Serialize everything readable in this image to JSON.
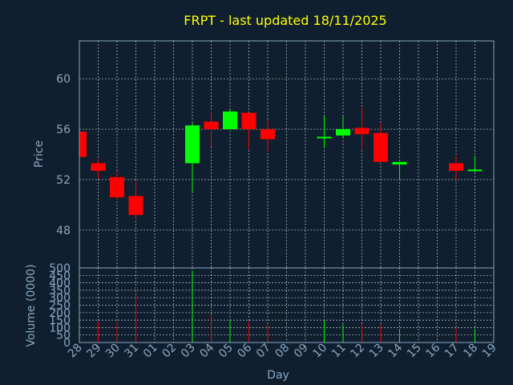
{
  "chart_data": {
    "type": "candlestick",
    "title": "FRPT - last updated 18/11/2025",
    "ylabel": "Price",
    "volume_label": "Volume (0000)",
    "xlabel": "Day",
    "ylim": [
      45,
      63
    ],
    "yticks": [
      48,
      52,
      56,
      60
    ],
    "volume_ylim": [
      0,
      500
    ],
    "volume_yticks": [
      0,
      50,
      100,
      150,
      200,
      250,
      300,
      350,
      400,
      450,
      500
    ],
    "grid": true,
    "colors": {
      "up": "#00ff00",
      "down": "#ff0000",
      "title": "#ffff00",
      "axis": "#8aa6c1",
      "background": "#0f1f2f"
    },
    "x_tick_labels": [
      "28",
      "29",
      "30",
      "31",
      "01",
      "02",
      "03",
      "04",
      "05",
      "06",
      "07",
      "08",
      "09",
      "10",
      "11",
      "12",
      "13",
      "14",
      "15",
      "16",
      "17",
      "18",
      "19"
    ],
    "candles": [
      {
        "day": "28",
        "open": 55.8,
        "high": 55.8,
        "low": 53.7,
        "close": 53.8,
        "volume": 0
      },
      {
        "day": "29",
        "open": 53.3,
        "high": 53.6,
        "low": 52.1,
        "close": 52.7,
        "volume": 140
      },
      {
        "day": "30",
        "open": 52.2,
        "high": 52.7,
        "low": 50.4,
        "close": 50.6,
        "volume": 140
      },
      {
        "day": "31",
        "open": 50.7,
        "high": 51.9,
        "low": 48.9,
        "close": 49.2,
        "volume": 320
      },
      {
        "day": "03",
        "open": 53.3,
        "high": 56.5,
        "low": 51.0,
        "close": 56.3,
        "volume": 480
      },
      {
        "day": "04",
        "open": 56.6,
        "high": 57.4,
        "low": 54.6,
        "close": 56.0,
        "volume": 190
      },
      {
        "day": "05",
        "open": 56.0,
        "high": 57.6,
        "low": 56.0,
        "close": 57.4,
        "volume": 150
      },
      {
        "day": "06",
        "open": 57.3,
        "high": 57.3,
        "low": 54.4,
        "close": 56.0,
        "volume": 140
      },
      {
        "day": "07",
        "open": 56.0,
        "high": 56.7,
        "low": 54.2,
        "close": 55.2,
        "volume": 120
      },
      {
        "day": "10",
        "open": 55.3,
        "high": 57.1,
        "low": 54.5,
        "close": 55.4,
        "volume": 145
      },
      {
        "day": "11",
        "open": 55.5,
        "high": 57.1,
        "low": 55.3,
        "close": 56.0,
        "volume": 120
      },
      {
        "day": "12",
        "open": 56.1,
        "high": 57.7,
        "low": 54.4,
        "close": 55.6,
        "volume": 120
      },
      {
        "day": "13",
        "open": 55.7,
        "high": 56.5,
        "low": 53.4,
        "close": 53.4,
        "volume": 120
      },
      {
        "day": "14",
        "open": 53.2,
        "high": 53.4,
        "low": 52.0,
        "close": 53.4,
        "volume": 80
      },
      {
        "day": "17",
        "open": 53.3,
        "high": 53.9,
        "low": 52.0,
        "close": 52.7,
        "volume": 100
      },
      {
        "day": "18",
        "open": 52.7,
        "high": 53.9,
        "low": 52.6,
        "close": 52.8,
        "volume": 90
      }
    ]
  }
}
